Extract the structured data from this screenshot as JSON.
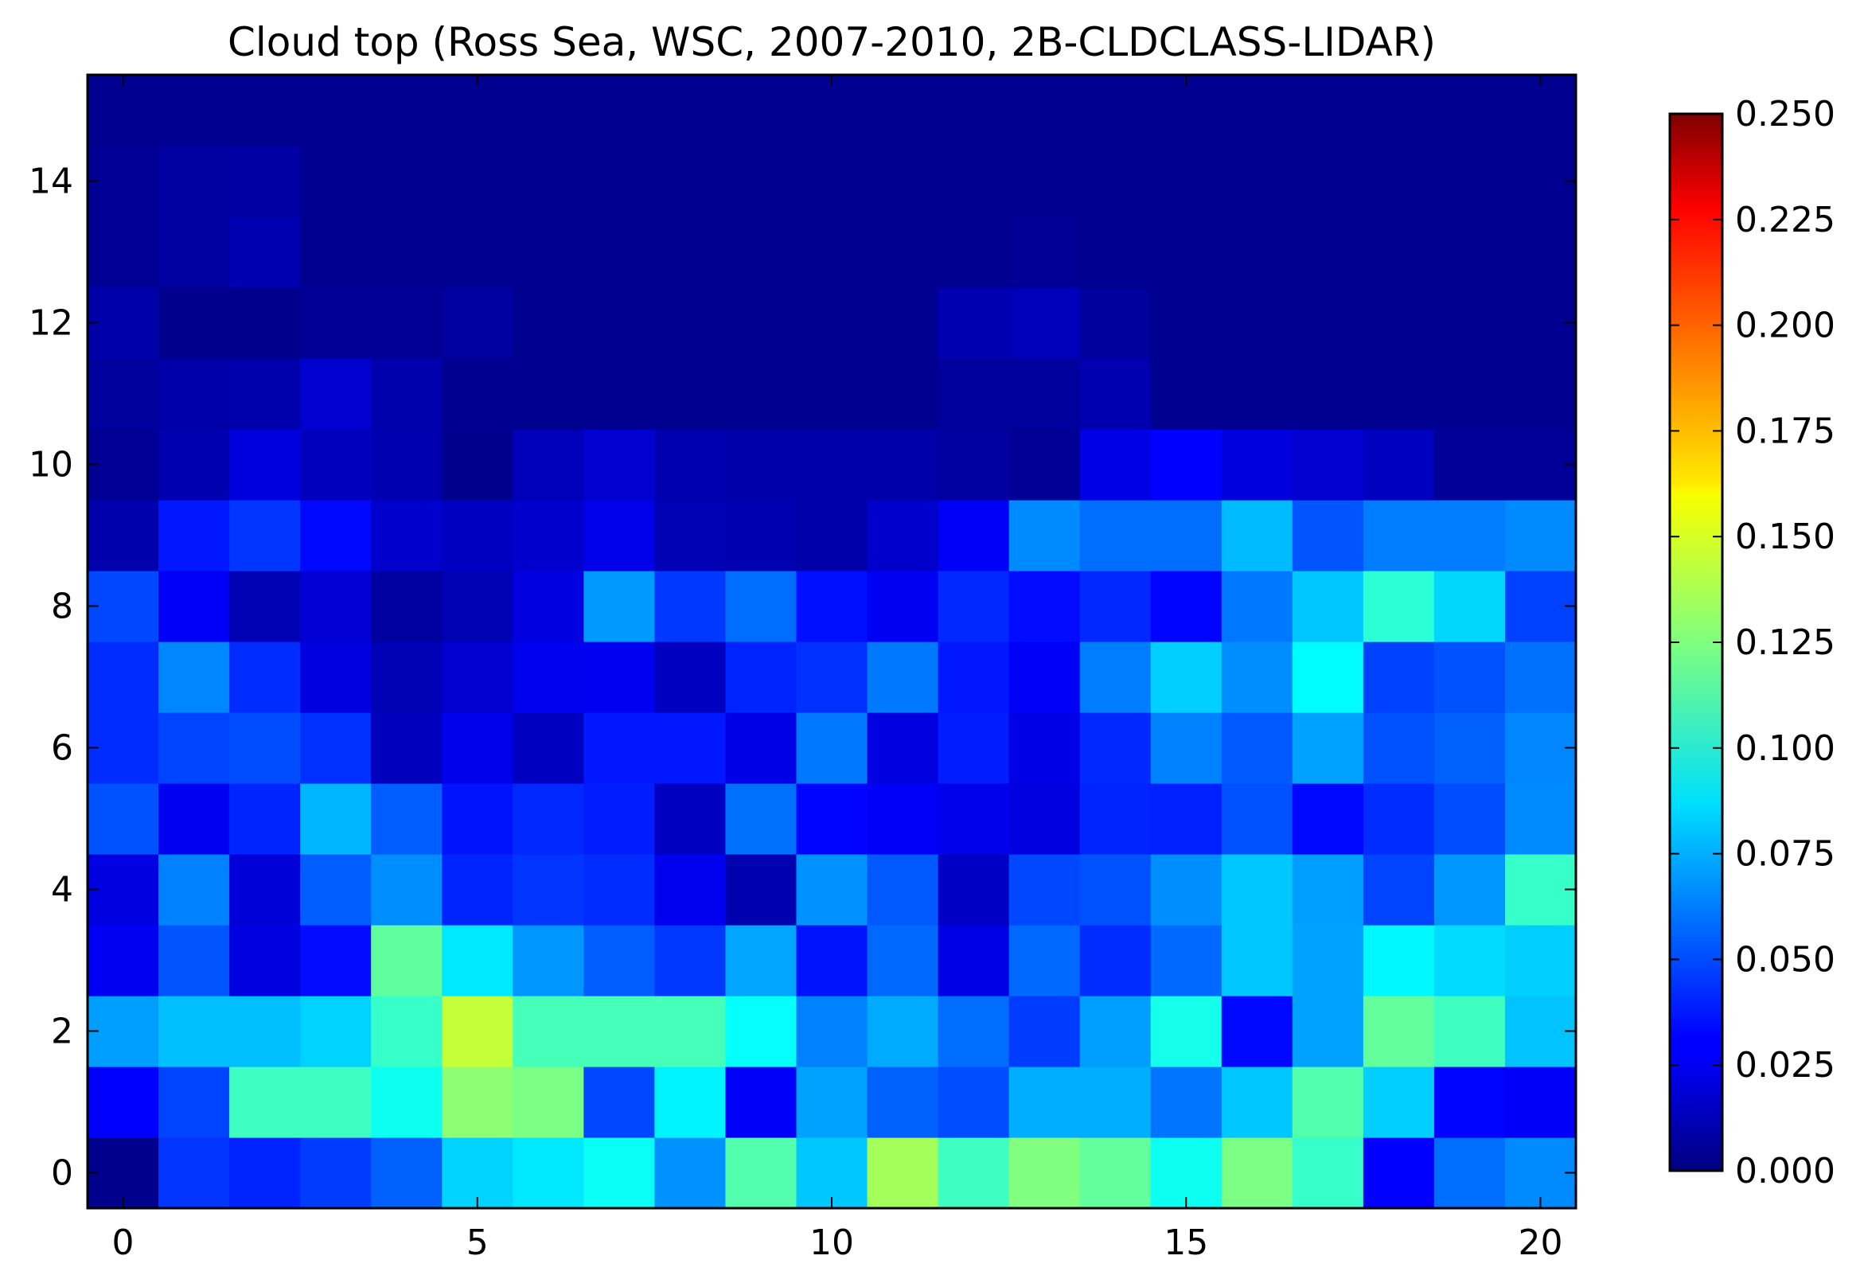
{
  "chart_data": {
    "type": "heatmap",
    "title": "Cloud top (Ross Sea, WSC, 2007-2010, 2B-CLDCLASS-LIDAR)",
    "xlabel": "",
    "ylabel": "",
    "x_ticks": [
      0,
      5,
      10,
      15,
      20
    ],
    "y_ticks": [
      0,
      2,
      4,
      6,
      8,
      10,
      12,
      14
    ],
    "xlim": [
      -0.5,
      20.5
    ],
    "ylim": [
      -0.5,
      15.5
    ],
    "colormap": "jet",
    "vmin": 0.0,
    "vmax": 0.25,
    "colorbar_ticks": [
      "0.000",
      "0.025",
      "0.050",
      "0.075",
      "0.100",
      "0.125",
      "0.150",
      "0.175",
      "0.200",
      "0.225",
      "0.250"
    ],
    "grid": false,
    "values": [
      [
        0.003,
        0.044,
        0.04,
        0.046,
        0.055,
        0.083,
        0.088,
        0.096,
        0.067,
        0.114,
        0.08,
        0.134,
        0.109,
        0.125,
        0.118,
        0.097,
        0.124,
        0.107,
        0.031,
        0.058,
        0.065
      ],
      [
        0.031,
        0.048,
        0.109,
        0.109,
        0.097,
        0.128,
        0.124,
        0.049,
        0.091,
        0.03,
        0.071,
        0.055,
        0.05,
        0.074,
        0.074,
        0.06,
        0.08,
        0.114,
        0.082,
        0.032,
        0.03
      ],
      [
        0.07,
        0.078,
        0.078,
        0.083,
        0.107,
        0.142,
        0.111,
        0.111,
        0.111,
        0.095,
        0.063,
        0.073,
        0.058,
        0.046,
        0.07,
        0.099,
        0.033,
        0.071,
        0.118,
        0.109,
        0.079
      ],
      [
        0.028,
        0.052,
        0.024,
        0.034,
        0.117,
        0.088,
        0.068,
        0.054,
        0.045,
        0.072,
        0.036,
        0.057,
        0.025,
        0.057,
        0.042,
        0.057,
        0.08,
        0.071,
        0.092,
        0.085,
        0.082
      ],
      [
        0.024,
        0.063,
        0.022,
        0.054,
        0.066,
        0.04,
        0.044,
        0.042,
        0.027,
        0.012,
        0.067,
        0.053,
        0.017,
        0.049,
        0.051,
        0.066,
        0.08,
        0.07,
        0.048,
        0.068,
        0.107
      ],
      [
        0.051,
        0.028,
        0.04,
        0.076,
        0.054,
        0.036,
        0.041,
        0.038,
        0.016,
        0.059,
        0.032,
        0.03,
        0.026,
        0.024,
        0.04,
        0.039,
        0.051,
        0.033,
        0.042,
        0.05,
        0.065
      ],
      [
        0.042,
        0.048,
        0.05,
        0.043,
        0.015,
        0.026,
        0.016,
        0.037,
        0.037,
        0.025,
        0.061,
        0.024,
        0.038,
        0.025,
        0.041,
        0.063,
        0.053,
        0.071,
        0.051,
        0.055,
        0.064
      ],
      [
        0.042,
        0.064,
        0.042,
        0.024,
        0.013,
        0.02,
        0.027,
        0.028,
        0.016,
        0.04,
        0.043,
        0.061,
        0.037,
        0.029,
        0.062,
        0.082,
        0.066,
        0.093,
        0.047,
        0.051,
        0.059
      ],
      [
        0.049,
        0.029,
        0.013,
        0.021,
        0.008,
        0.013,
        0.024,
        0.069,
        0.045,
        0.058,
        0.035,
        0.028,
        0.041,
        0.034,
        0.041,
        0.032,
        0.061,
        0.08,
        0.104,
        0.084,
        0.047
      ],
      [
        0.011,
        0.037,
        0.044,
        0.033,
        0.019,
        0.016,
        0.019,
        0.026,
        0.013,
        0.012,
        0.01,
        0.019,
        0.029,
        0.065,
        0.058,
        0.058,
        0.077,
        0.052,
        0.062,
        0.062,
        0.065
      ],
      [
        0.005,
        0.012,
        0.023,
        0.015,
        0.012,
        0.003,
        0.014,
        0.02,
        0.012,
        0.01,
        0.01,
        0.01,
        0.008,
        0.005,
        0.025,
        0.031,
        0.023,
        0.02,
        0.016,
        0.006,
        0.006
      ],
      [
        0.007,
        0.01,
        0.011,
        0.02,
        0.011,
        0.004,
        0.004,
        0.004,
        0.004,
        0.004,
        0.004,
        0.004,
        0.007,
        0.007,
        0.012,
        0.004,
        0.004,
        0.004,
        0.004,
        0.004,
        0.004
      ],
      [
        0.01,
        0.003,
        0.003,
        0.005,
        0.005,
        0.008,
        0.004,
        0.004,
        0.004,
        0.004,
        0.004,
        0.004,
        0.012,
        0.014,
        0.007,
        0.004,
        0.004,
        0.004,
        0.004,
        0.004,
        0.004
      ],
      [
        0.005,
        0.008,
        0.012,
        0.004,
        0.004,
        0.004,
        0.004,
        0.004,
        0.004,
        0.004,
        0.004,
        0.004,
        0.004,
        0.005,
        0.004,
        0.004,
        0.004,
        0.004,
        0.004,
        0.004,
        0.004
      ],
      [
        0.005,
        0.008,
        0.009,
        0.004,
        0.004,
        0.004,
        0.004,
        0.004,
        0.004,
        0.004,
        0.004,
        0.004,
        0.004,
        0.004,
        0.004,
        0.004,
        0.004,
        0.004,
        0.004,
        0.004,
        0.004
      ],
      [
        0.004,
        0.004,
        0.004,
        0.004,
        0.004,
        0.004,
        0.004,
        0.004,
        0.004,
        0.004,
        0.004,
        0.004,
        0.004,
        0.004,
        0.004,
        0.004,
        0.004,
        0.004,
        0.004,
        0.004,
        0.004
      ]
    ]
  }
}
